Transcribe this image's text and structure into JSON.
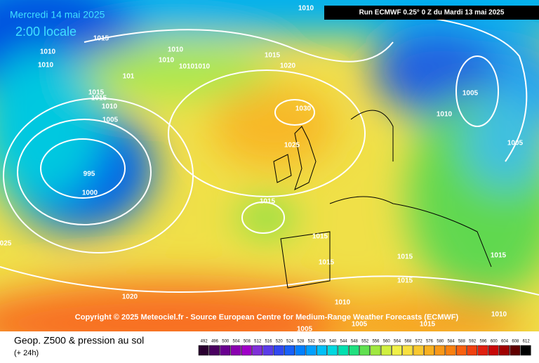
{
  "header": {
    "date": "Mercredi 14 mai 2025",
    "time": "2:00 locale",
    "run": "Run ECMWF 0.25° 0 Z du Mardi 13 mai 2025",
    "copyright": "Copyright © 2025 Meteociel.fr - Source European Centre for Medium-Range Weather Forecasts (ECMWF)"
  },
  "isobar_labels": [
    1010,
    1015,
    1010,
    1010,
    1010,
    1010,
    1010,
    1010,
    1015,
    1020,
    "101",
    1015,
    1015,
    1010,
    1005,
    995,
    1000,
    1030,
    1025,
    1015,
    1015,
    1015,
    1015,
    1015,
    1020,
    1010,
    1005,
    1005,
    1015,
    1010,
    1015,
    1005,
    1010,
    1005,
    "025"
  ],
  "legend": {
    "title": "Geop. Z500 & pression au sol",
    "subtitle": "(+ 24h)",
    "scale": [
      492,
      496,
      500,
      504,
      508,
      512,
      516,
      520,
      524,
      528,
      532,
      536,
      540,
      544,
      548,
      552,
      556,
      560,
      564,
      568,
      572,
      576,
      580,
      584,
      588,
      592,
      596,
      600,
      604,
      608,
      612
    ],
    "colors": [
      "#2a0030",
      "#4a0060",
      "#6a0090",
      "#8a00b0",
      "#a000c8",
      "#8030d8",
      "#5a3ce8",
      "#3048f0",
      "#1860f8",
      "#0080ff",
      "#00a0ff",
      "#00c0f8",
      "#00d8e0",
      "#00e0b0",
      "#20e080",
      "#60e050",
      "#a0e840",
      "#d0f040",
      "#f0f048",
      "#f8e040",
      "#f8c830",
      "#f8b020",
      "#f89818",
      "#f88010",
      "#f86010",
      "#f04010",
      "#e02010",
      "#c80808",
      "#a00000",
      "#600000",
      "#000000"
    ]
  }
}
